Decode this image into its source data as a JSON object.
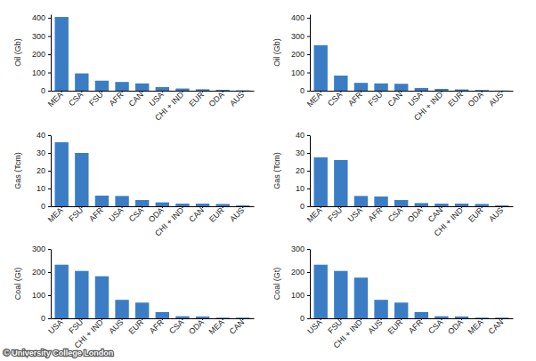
{
  "chart_data": [
    {
      "type": "bar",
      "ylabel": "Oil (Gb)",
      "color": "#3b7dc4",
      "categories": [
        "MEA",
        "CSA",
        "FSU",
        "AFR",
        "CAN",
        "USA",
        "CHI + IND",
        "EUR",
        "ODA",
        "AUS"
      ],
      "values": [
        405,
        95,
        55,
        48,
        40,
        20,
        12,
        8,
        5,
        2
      ],
      "ylim": [
        0,
        420
      ],
      "yticks": [
        0,
        100,
        200,
        300,
        400
      ]
    },
    {
      "type": "bar",
      "ylabel": "Oil (Gb)",
      "color": "#3b7dc4",
      "categories": [
        "MEA",
        "CSA",
        "AFR",
        "FSU",
        "CAN",
        "USA",
        "CHI + IND",
        "EUR",
        "ODA",
        "AUS"
      ],
      "values": [
        250,
        83,
        43,
        40,
        38,
        15,
        10,
        7,
        4,
        1
      ],
      "ylim": [
        0,
        420
      ],
      "yticks": [
        0,
        100,
        200,
        300,
        400
      ]
    },
    {
      "type": "bar",
      "ylabel": "Gas (Tcm)",
      "color": "#3b7dc4",
      "categories": [
        "MEA",
        "FSU",
        "AFR",
        "USA",
        "CSA",
        "ODA",
        "CHI + IND",
        "CAN",
        "EUR",
        "AUS"
      ],
      "values": [
        36,
        30,
        6,
        5.8,
        3.5,
        2.2,
        1.5,
        1.5,
        1.3,
        0.5
      ],
      "ylim": [
        0,
        40
      ],
      "yticks": [
        0,
        10,
        20,
        30,
        40
      ]
    },
    {
      "type": "bar",
      "ylabel": "Gas (Tcm)",
      "color": "#3b7dc4",
      "categories": [
        "MEA",
        "FSU",
        "USA",
        "AFR",
        "CSA",
        "ODA",
        "CAN",
        "CHI + IND",
        "EUR",
        "AUS"
      ],
      "values": [
        27.5,
        26,
        5.8,
        5.5,
        3.5,
        1.8,
        1.5,
        1.5,
        1.3,
        0.5
      ],
      "ylim": [
        0,
        40
      ],
      "yticks": [
        0,
        10,
        20,
        30,
        40
      ]
    },
    {
      "type": "bar",
      "ylabel": "Coal (Gt)",
      "color": "#3b7dc4",
      "categories": [
        "USA",
        "FSU",
        "CHI + IND",
        "AUS",
        "EUR",
        "AFR",
        "CSA",
        "ODA",
        "MEA",
        "CAN"
      ],
      "values": [
        232,
        205,
        182,
        80,
        68,
        27,
        9,
        8,
        3,
        3
      ],
      "ylim": [
        0,
        300
      ],
      "yticks": [
        0,
        100,
        200,
        300
      ]
    },
    {
      "type": "bar",
      "ylabel": "Coal (Gt)",
      "color": "#3b7dc4",
      "categories": [
        "USA",
        "FSU",
        "CHI + IND",
        "AUS",
        "EUR",
        "AFR",
        "CSA",
        "ODA",
        "MEA",
        "CAN"
      ],
      "values": [
        232,
        205,
        176,
        80,
        68,
        27,
        9,
        8,
        3,
        3
      ],
      "ylim": [
        0,
        300
      ],
      "yticks": [
        0,
        100,
        200,
        300
      ]
    }
  ],
  "credit": "© University College London"
}
